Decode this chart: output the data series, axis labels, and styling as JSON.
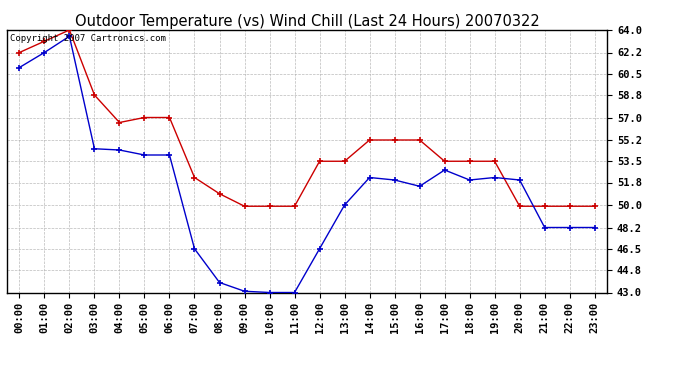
{
  "title": "Outdoor Temperature (vs) Wind Chill (Last 24 Hours) 20070322",
  "copyright": "Copyright 2007 Cartronics.com",
  "x_labels": [
    "00:00",
    "01:00",
    "02:00",
    "03:00",
    "04:00",
    "05:00",
    "06:00",
    "07:00",
    "08:00",
    "09:00",
    "10:00",
    "11:00",
    "12:00",
    "13:00",
    "14:00",
    "15:00",
    "16:00",
    "17:00",
    "18:00",
    "19:00",
    "20:00",
    "21:00",
    "22:00",
    "23:00"
  ],
  "temp_data": [
    62.2,
    63.1,
    64.0,
    58.8,
    56.6,
    57.0,
    57.0,
    52.2,
    50.9,
    49.9,
    49.9,
    49.9,
    53.5,
    53.5,
    55.2,
    55.2,
    55.2,
    53.5,
    53.5,
    53.5,
    49.9,
    49.9,
    49.9,
    49.9
  ],
  "wind_chill_data": [
    61.0,
    62.2,
    63.5,
    54.5,
    54.4,
    54.0,
    54.0,
    46.5,
    43.8,
    43.1,
    43.0,
    43.0,
    46.5,
    50.0,
    52.2,
    52.0,
    51.5,
    52.8,
    52.0,
    52.2,
    52.0,
    48.2,
    48.2,
    48.2
  ],
  "ylim": [
    43.0,
    64.0
  ],
  "yticks": [
    43.0,
    44.8,
    46.5,
    48.2,
    50.0,
    51.8,
    53.5,
    55.2,
    57.0,
    58.8,
    60.5,
    62.2,
    64.0
  ],
  "temp_color": "#cc0000",
  "wind_chill_color": "#0000cc",
  "bg_color": "#ffffff",
  "grid_color": "#aaaaaa",
  "title_fontsize": 10.5,
  "tick_fontsize": 7.5,
  "copyright_fontsize": 6.5
}
